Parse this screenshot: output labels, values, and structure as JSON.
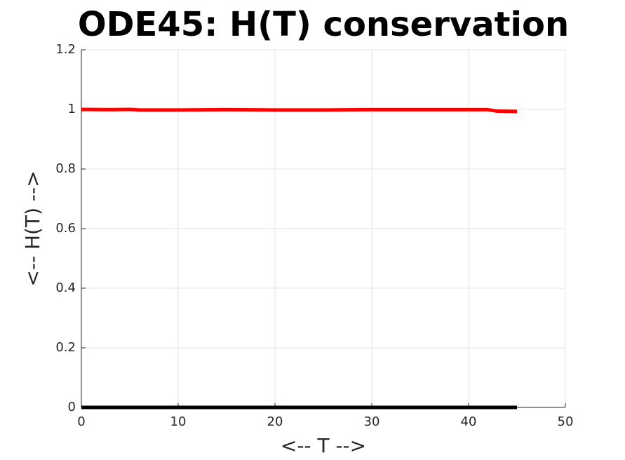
{
  "chart_data": {
    "type": "line",
    "title": "ODE45: H(T) conservation",
    "xlabel": "<-- T -->",
    "ylabel": "<-- H(T) -->",
    "series": [
      {
        "color": "#ff0000",
        "x": [
          0,
          3,
          5,
          6,
          10,
          15,
          20,
          25,
          30,
          35,
          40,
          42,
          43,
          45
        ],
        "values": [
          1.0,
          0.999,
          1.0,
          0.998,
          0.998,
          0.999,
          0.998,
          0.998,
          0.999,
          0.999,
          0.999,
          0.999,
          0.994,
          0.993
        ]
      },
      {
        "color": "#000000",
        "x": [
          0,
          45
        ],
        "values": [
          0,
          0
        ]
      }
    ],
    "xlim": [
      0,
      50
    ],
    "xticks": [
      0,
      10,
      20,
      30,
      40,
      50
    ],
    "ylim": [
      0,
      1.2
    ],
    "yticks": [
      0,
      0.2,
      0.4,
      0.6,
      0.8,
      1,
      1.2
    ],
    "grid": true
  }
}
